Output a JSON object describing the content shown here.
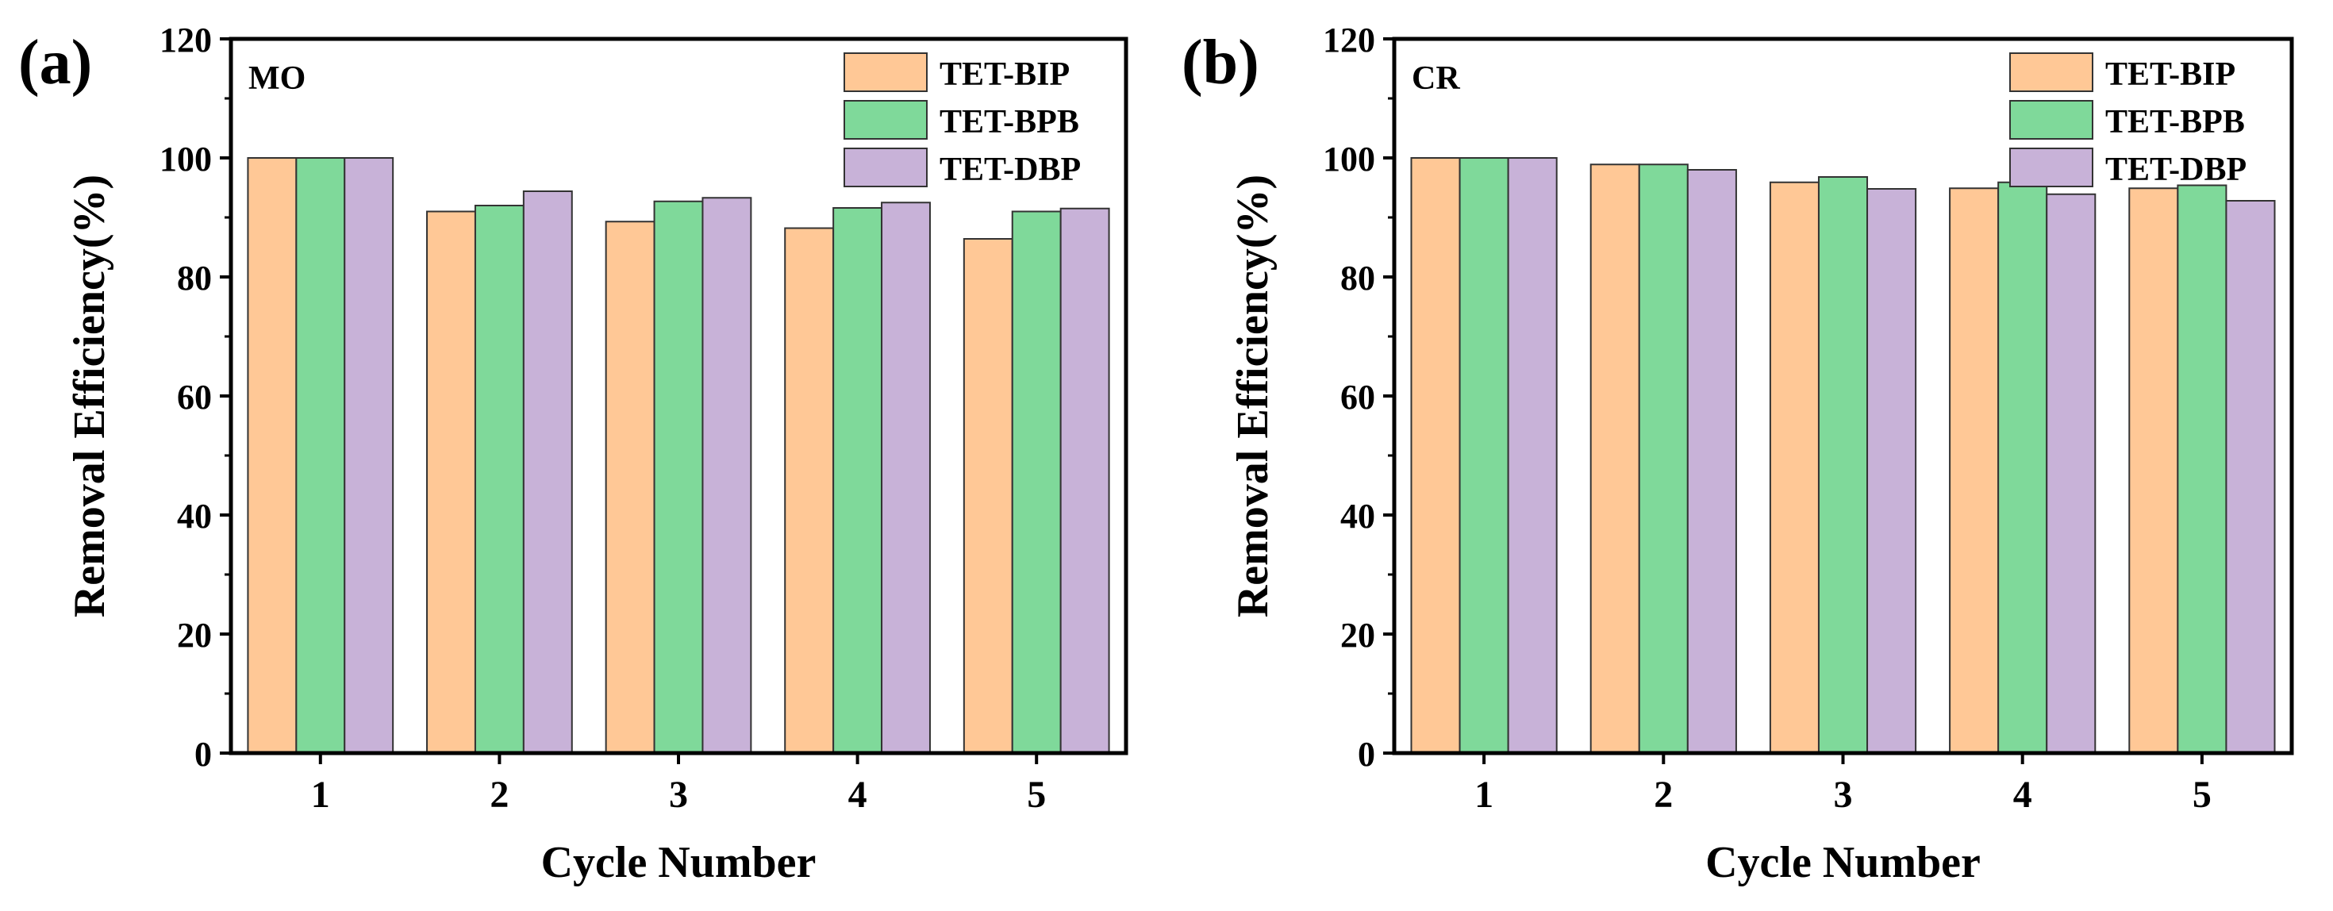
{
  "chart_data": [
    {
      "type": "bar",
      "panel_label": "(a)",
      "annotation": "MO",
      "categories": [
        "1",
        "2",
        "3",
        "4",
        "5"
      ],
      "series": [
        {
          "name": "TET-BIP",
          "color": "#FFC896",
          "values": [
            100,
            91.0,
            89.3,
            88.2,
            86.4
          ]
        },
        {
          "name": "TET-BPB",
          "color": "#7FD99A",
          "values": [
            100,
            92.0,
            92.7,
            91.6,
            91.0
          ]
        },
        {
          "name": "TET-DBP",
          "color": "#C8B2D8",
          "values": [
            100,
            94.4,
            93.3,
            92.5,
            91.5
          ]
        }
      ],
      "xlabel": "Cycle Number",
      "ylabel": "Removal Efficiency(%)",
      "ylim": [
        0,
        120
      ],
      "yticks": [
        "0",
        "20",
        "40",
        "60",
        "80",
        "100",
        "120"
      ],
      "legend": "top-right"
    },
    {
      "type": "bar",
      "panel_label": "(b)",
      "annotation": "CR",
      "categories": [
        "1",
        "2",
        "3",
        "4",
        "5"
      ],
      "series": [
        {
          "name": "TET-BIP",
          "color": "#FFC896",
          "values": [
            100,
            98.9,
            95.9,
            94.9,
            94.9
          ]
        },
        {
          "name": "TET-BPB",
          "color": "#7FD99A",
          "values": [
            100,
            98.9,
            96.8,
            95.9,
            95.4
          ]
        },
        {
          "name": "TET-DBP",
          "color": "#C8B2D8",
          "values": [
            100,
            98.0,
            94.8,
            93.9,
            92.8
          ]
        }
      ],
      "xlabel": "Cycle Number",
      "ylabel": "Removal Efficiency(%)",
      "ylim": [
        0,
        120
      ],
      "yticks": [
        "0",
        "20",
        "40",
        "60",
        "80",
        "100",
        "120"
      ],
      "legend": "top-right"
    }
  ]
}
